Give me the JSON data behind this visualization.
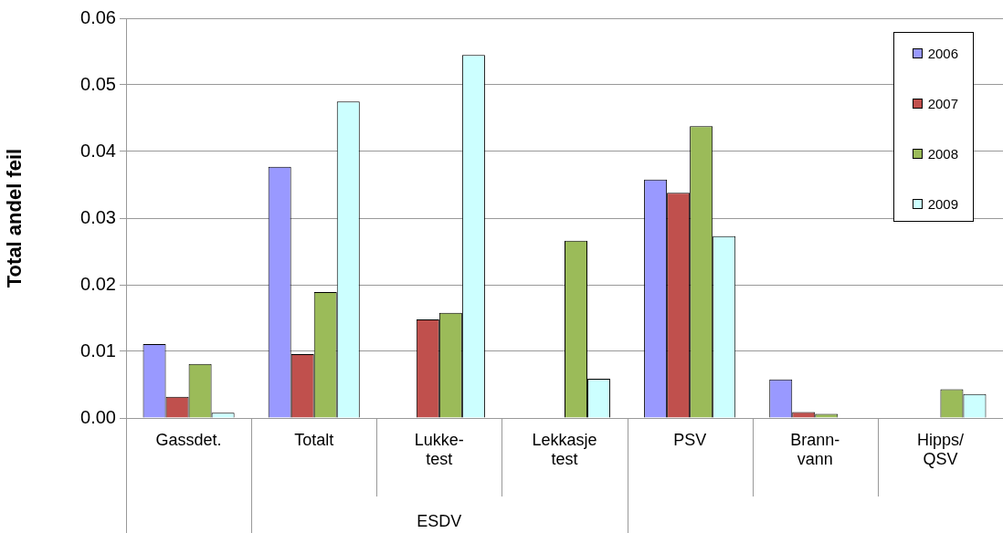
{
  "chart_data": {
    "type": "bar",
    "ylabel": "Total andel feil",
    "categories": [
      "Gassdet.",
      "Totalt",
      "Lukke-\ntest",
      "Lekkasje\ntest",
      "PSV",
      "Brann-\nvann",
      "Hipps/\nQSV"
    ],
    "series": [
      {
        "name": "2006",
        "color": "#9999ff",
        "values": [
          0.0111,
          0.0377,
          null,
          null,
          0.0358,
          0.0058,
          null
        ]
      },
      {
        "name": "2007",
        "color": "#c0504d",
        "values": [
          0.0032,
          0.0096,
          0.0148,
          null,
          0.0338,
          0.0009,
          null
        ]
      },
      {
        "name": "2008",
        "color": "#9bbb59",
        "values": [
          0.0081,
          0.0189,
          0.0158,
          0.0266,
          0.0438,
          0.0006,
          0.0043
        ]
      },
      {
        "name": "2009",
        "color": "#ccffff",
        "values": [
          0.0008,
          0.0475,
          0.0545,
          0.0059,
          0.0273,
          null,
          0.0036
        ]
      }
    ],
    "ylim": [
      0,
      0.06
    ],
    "yticks": [
      {
        "value": 0,
        "label": "0.00"
      },
      0.01,
      0.02,
      0.03,
      0.04,
      0.05,
      0.06
    ],
    "grid": "y",
    "legend": "top right",
    "annotations": [
      "ESDV"
    ]
  }
}
